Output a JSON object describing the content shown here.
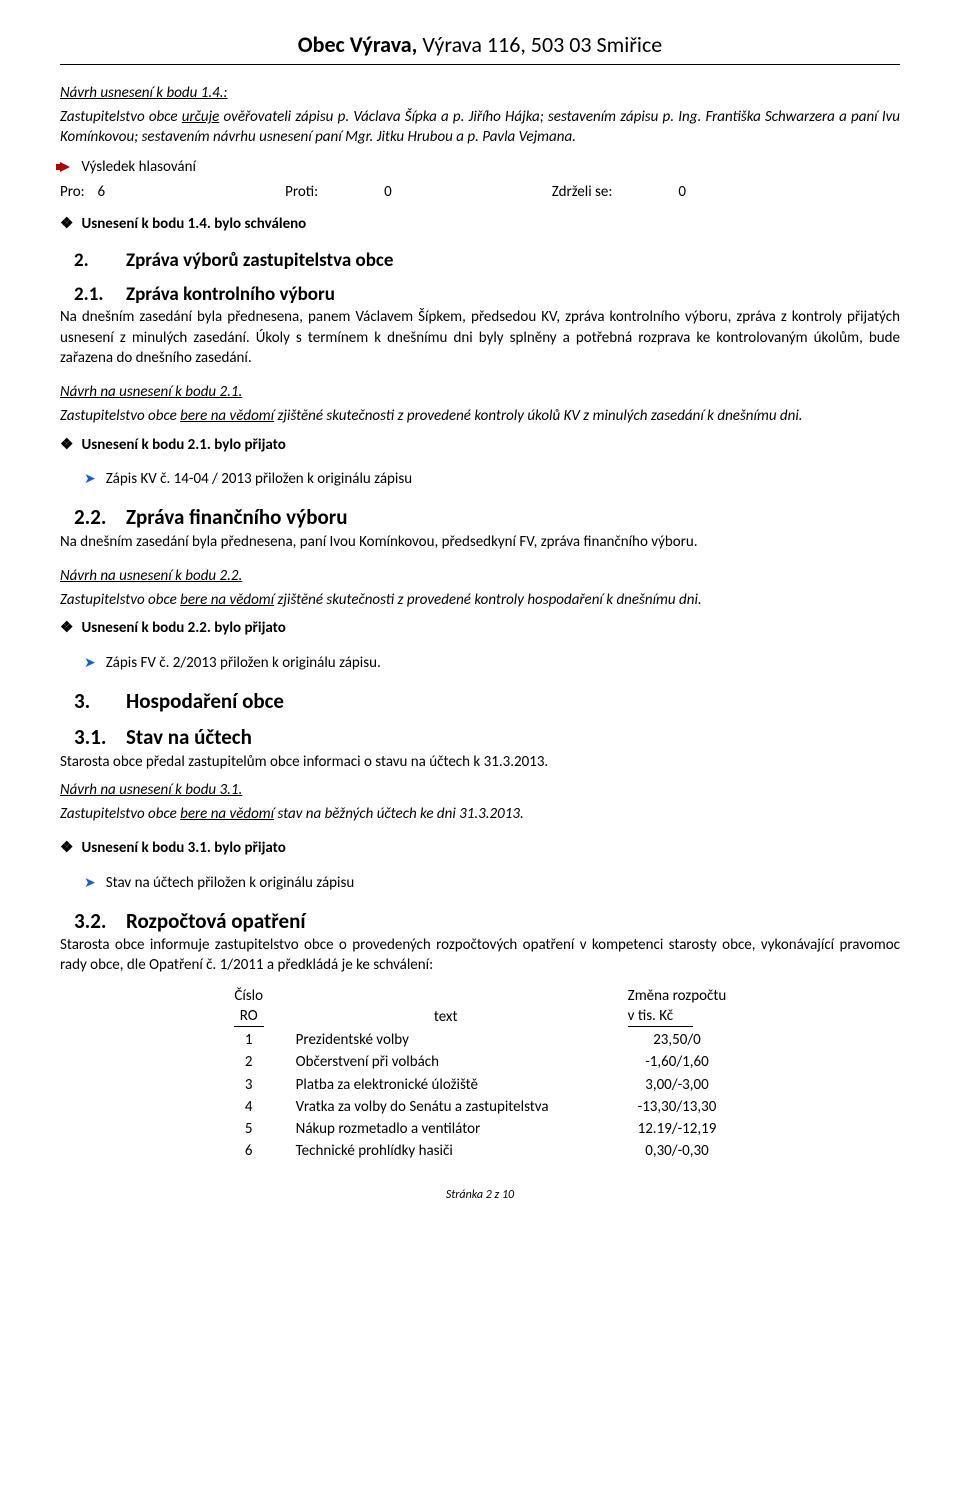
{
  "header": {
    "name_bold": "Obec Výrava, ",
    "address": "Výrava 116, 503 03 Smiřice"
  },
  "s1": {
    "title": "Návrh usnesení k bodu 1.4.:",
    "p1a": "Zastupitelstvo obce ",
    "p1b": "určuje",
    "p1c": " ověřovateli zápisu p. Václava Šípka a p. Jiřího Hájka; sestavením zápisu p. Ing. Františka Schwarzera a paní Ivu Komínkovou; sestavením návrhu usnesení paní Mgr. Jitku Hrubou a p. Pavla Vejmana.",
    "vote_label": "Výsledek hlasování",
    "vote": {
      "pro_l": "Pro:",
      "pro_v": "6",
      "proti_l": "Proti:",
      "proti_v": "0",
      "zdr_l": "Zdrželi se:",
      "zdr_v": "0"
    },
    "res": "Usnesení k bodu 1.4. bylo schváleno"
  },
  "s2": {
    "h": "Zpráva výborů zastupitelstva obce",
    "hn": "2.",
    "s21n": "2.1.",
    "s21t": "Zpráva kontrolního výboru",
    "s21p": "Na dnešním zasedání byla přednesena, panem Václavem Šípkem, předsedou KV, zpráva kontrolního výboru, zpráva z kontroly přijatých usnesení z minulých zasedání. Úkoly s termínem k dnešnímu dni byly splněny a potřebná rozprava ke kontrolovaným úkolům, bude zařazena do dnešního zasedání.",
    "s21nav": "Návrh na usnesení k bodu 2.1.",
    "s21nava": "Zastupitelstvo obce ",
    "s21navb": "bere na vědomí",
    "s21navc": " zjištěné skutečnosti z provedené kontroly úkolů KV z minulých zasedání k dnešnímu dni.",
    "s21res": "Usnesení k bodu 2.1. bylo přijato",
    "s21att": "Zápis KV č. 14-04 / 2013 přiložen k originálu zápisu",
    "s22n": "2.2.",
    "s22t": "Zpráva finančního výboru",
    "s22p": "Na dnešním zasedání byla přednesena, paní Ivou Komínkovou, předsedkyní FV, zpráva finančního výboru.",
    "s22nav": "Návrh na usnesení k bodu 2.2.",
    "s22nava": "Zastupitelstvo obce ",
    "s22navb": "bere na vědomí",
    "s22navc": " zjištěné skutečnosti z provedené kontroly hospodaření k dnešnímu dni.",
    "s22res": "Usnesení k bodu 2.2. bylo přijato",
    "s22att": "Zápis FV č. 2/2013 přiložen k originálu zápisu."
  },
  "s3": {
    "h": "Hospodaření obce",
    "hn": "3.",
    "s31n": "3.1.",
    "s31t": "Stav na účtech",
    "s31p": "Starosta obce předal zastupitelům obce informaci o stavu na účtech k 31.3.2013.",
    "s31nav": "Návrh na usnesení k bodu 3.1.",
    "s31nava": "Zastupitelstvo obce ",
    "s31navb": "bere na vědomí",
    "s31navc": " stav na běžných účtech ke dni 31.3.2013.",
    "s31res": "Usnesení k bodu 3.1. bylo přijato",
    "s31att": "Stav na účtech přiložen k originálu zápisu",
    "s32n": "3.2.",
    "s32t": "Rozpočtová opatření",
    "s32p": "Starosta obce informuje zastupitelstvo obce o provedených rozpočtových opatření v kompetenci starosty obce, vykonávající pravomoc rady obce, dle Opatření č. 1/2011 a předkládá je ke schválení:",
    "th1a": "Číslo",
    "th1b": "RO",
    "th2": "text",
    "th3a": "Změna rozpočtu",
    "th3b": "v tis. Kč",
    "rows": [
      {
        "n": "1",
        "t": "Prezidentské volby",
        "v": "23,50/0"
      },
      {
        "n": "2",
        "t": "Občerstvení při volbách",
        "v": "-1,60/1,60"
      },
      {
        "n": "3",
        "t": "Platba za elektronické úložiště",
        "v": "3,00/-3,00"
      },
      {
        "n": "4",
        "t": "Vratka za volby do Senátu a zastupitelstva",
        "v": "-13,30/13,30"
      },
      {
        "n": "5",
        "t": "Nákup rozmetadlo a ventilátor",
        "v": "12.19/-12,19"
      },
      {
        "n": "6",
        "t": "Technické prohlídky hasiči",
        "v": "0,30/-0,30"
      }
    ]
  },
  "footer": "Stránka 2 z 10"
}
